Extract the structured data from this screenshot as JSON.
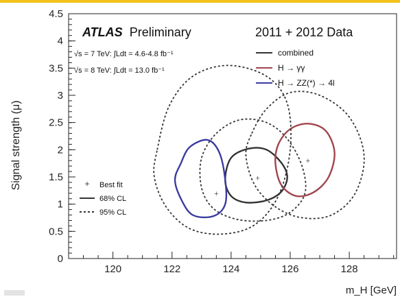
{
  "chart_data": {
    "type": "contour",
    "title": "ATLAS Preliminary",
    "title_bold": "ATLAS",
    "title_rest": "Preliminary",
    "subtitle": "2011 + 2012 Data",
    "lumi_lines": [
      "√s = 7 TeV: ∫Ldt = 4.6-4.8 fb⁻¹",
      "√s = 8 TeV: ∫Ldt = 13.0 fb⁻¹"
    ],
    "xlabel": "m_H [GeV]",
    "ylabel": "Signal strength (μ)",
    "xlim": [
      118.5,
      129.6
    ],
    "ylim": [
      0,
      4.5
    ],
    "x_ticks": [
      120,
      122,
      124,
      126,
      128
    ],
    "y_ticks": [
      0,
      0.5,
      1,
      1.5,
      2,
      2.5,
      3,
      3.5,
      4,
      4.5
    ],
    "x_tick_labels": [
      "120",
      "122",
      "124",
      "126",
      "128"
    ],
    "y_tick_labels": [
      "0",
      "0.5",
      "1",
      "1.5",
      "2",
      "2.5",
      "3",
      "3.5",
      "4",
      "4.5"
    ],
    "legend_position": "top-right",
    "legend": [
      {
        "label": "combined",
        "color": "#333333"
      },
      {
        "label": "H → γγ",
        "color": "#a0454d"
      },
      {
        "label": "H → ZZ(*) → 4l",
        "color": "#3a3aa0"
      }
    ],
    "style_legend_position": "center-left",
    "style_legend": [
      "Best fit",
      "68% CL",
      "95% CL"
    ],
    "series": [
      {
        "name": "combined",
        "color": "#333333",
        "best_fit": [
          124.9,
          1.48
        ],
        "contour_68": [
          [
            124.0,
            1.85
          ],
          [
            124.6,
            2.02
          ],
          [
            125.2,
            2.0
          ],
          [
            125.7,
            1.76
          ],
          [
            125.9,
            1.5
          ],
          [
            125.7,
            1.23
          ],
          [
            125.2,
            1.07
          ],
          [
            124.5,
            1.03
          ],
          [
            124.0,
            1.15
          ],
          [
            123.8,
            1.45
          ]
        ],
        "contour_95": [
          [
            123.0,
            1.85
          ],
          [
            123.5,
            2.3
          ],
          [
            124.3,
            2.55
          ],
          [
            125.2,
            2.5
          ],
          [
            125.9,
            2.2
          ],
          [
            126.4,
            1.7
          ],
          [
            126.5,
            1.2
          ],
          [
            126.0,
            0.85
          ],
          [
            125.2,
            0.7
          ],
          [
            124.2,
            0.72
          ],
          [
            123.4,
            0.92
          ],
          [
            123.0,
            1.3
          ]
        ]
      },
      {
        "name": "H → γγ",
        "color": "#a0454d",
        "best_fit": [
          126.6,
          1.8
        ],
        "contour_68": [
          [
            125.6,
            2.1
          ],
          [
            126.0,
            2.38
          ],
          [
            126.6,
            2.48
          ],
          [
            127.2,
            2.35
          ],
          [
            127.5,
            1.95
          ],
          [
            127.3,
            1.5
          ],
          [
            126.8,
            1.22
          ],
          [
            126.2,
            1.15
          ],
          [
            125.7,
            1.35
          ],
          [
            125.5,
            1.75
          ]
        ],
        "contour_95": [
          [
            124.7,
            2.3
          ],
          [
            125.2,
            2.75
          ],
          [
            126.0,
            3.05
          ],
          [
            127.0,
            3.0
          ],
          [
            128.0,
            2.6
          ],
          [
            128.5,
            1.9
          ],
          [
            128.2,
            1.2
          ],
          [
            127.4,
            0.8
          ],
          [
            126.4,
            0.75
          ],
          [
            125.5,
            0.95
          ],
          [
            124.8,
            1.35
          ],
          [
            124.5,
            1.9
          ]
        ]
      },
      {
        "name": "H → ZZ(*) → 4l",
        "color": "#3a3aa0",
        "best_fit": [
          123.5,
          1.2
        ],
        "contour_68": [
          [
            122.3,
            1.75
          ],
          [
            122.6,
            2.05
          ],
          [
            123.2,
            2.18
          ],
          [
            123.6,
            1.95
          ],
          [
            123.8,
            1.45
          ],
          [
            123.8,
            1.0
          ],
          [
            123.4,
            0.78
          ],
          [
            122.7,
            0.8
          ],
          [
            122.3,
            1.1
          ],
          [
            122.1,
            1.45
          ]
        ],
        "contour_95": [
          [
            121.5,
            2.0
          ],
          [
            121.9,
            2.8
          ],
          [
            122.7,
            3.35
          ],
          [
            123.9,
            3.55
          ],
          [
            125.2,
            3.35
          ],
          [
            125.9,
            2.85
          ],
          [
            126.0,
            2.0
          ],
          [
            125.6,
            1.15
          ],
          [
            124.8,
            0.62
          ],
          [
            123.7,
            0.45
          ],
          [
            122.6,
            0.55
          ],
          [
            121.8,
            0.95
          ],
          [
            121.4,
            1.5
          ]
        ]
      }
    ]
  }
}
